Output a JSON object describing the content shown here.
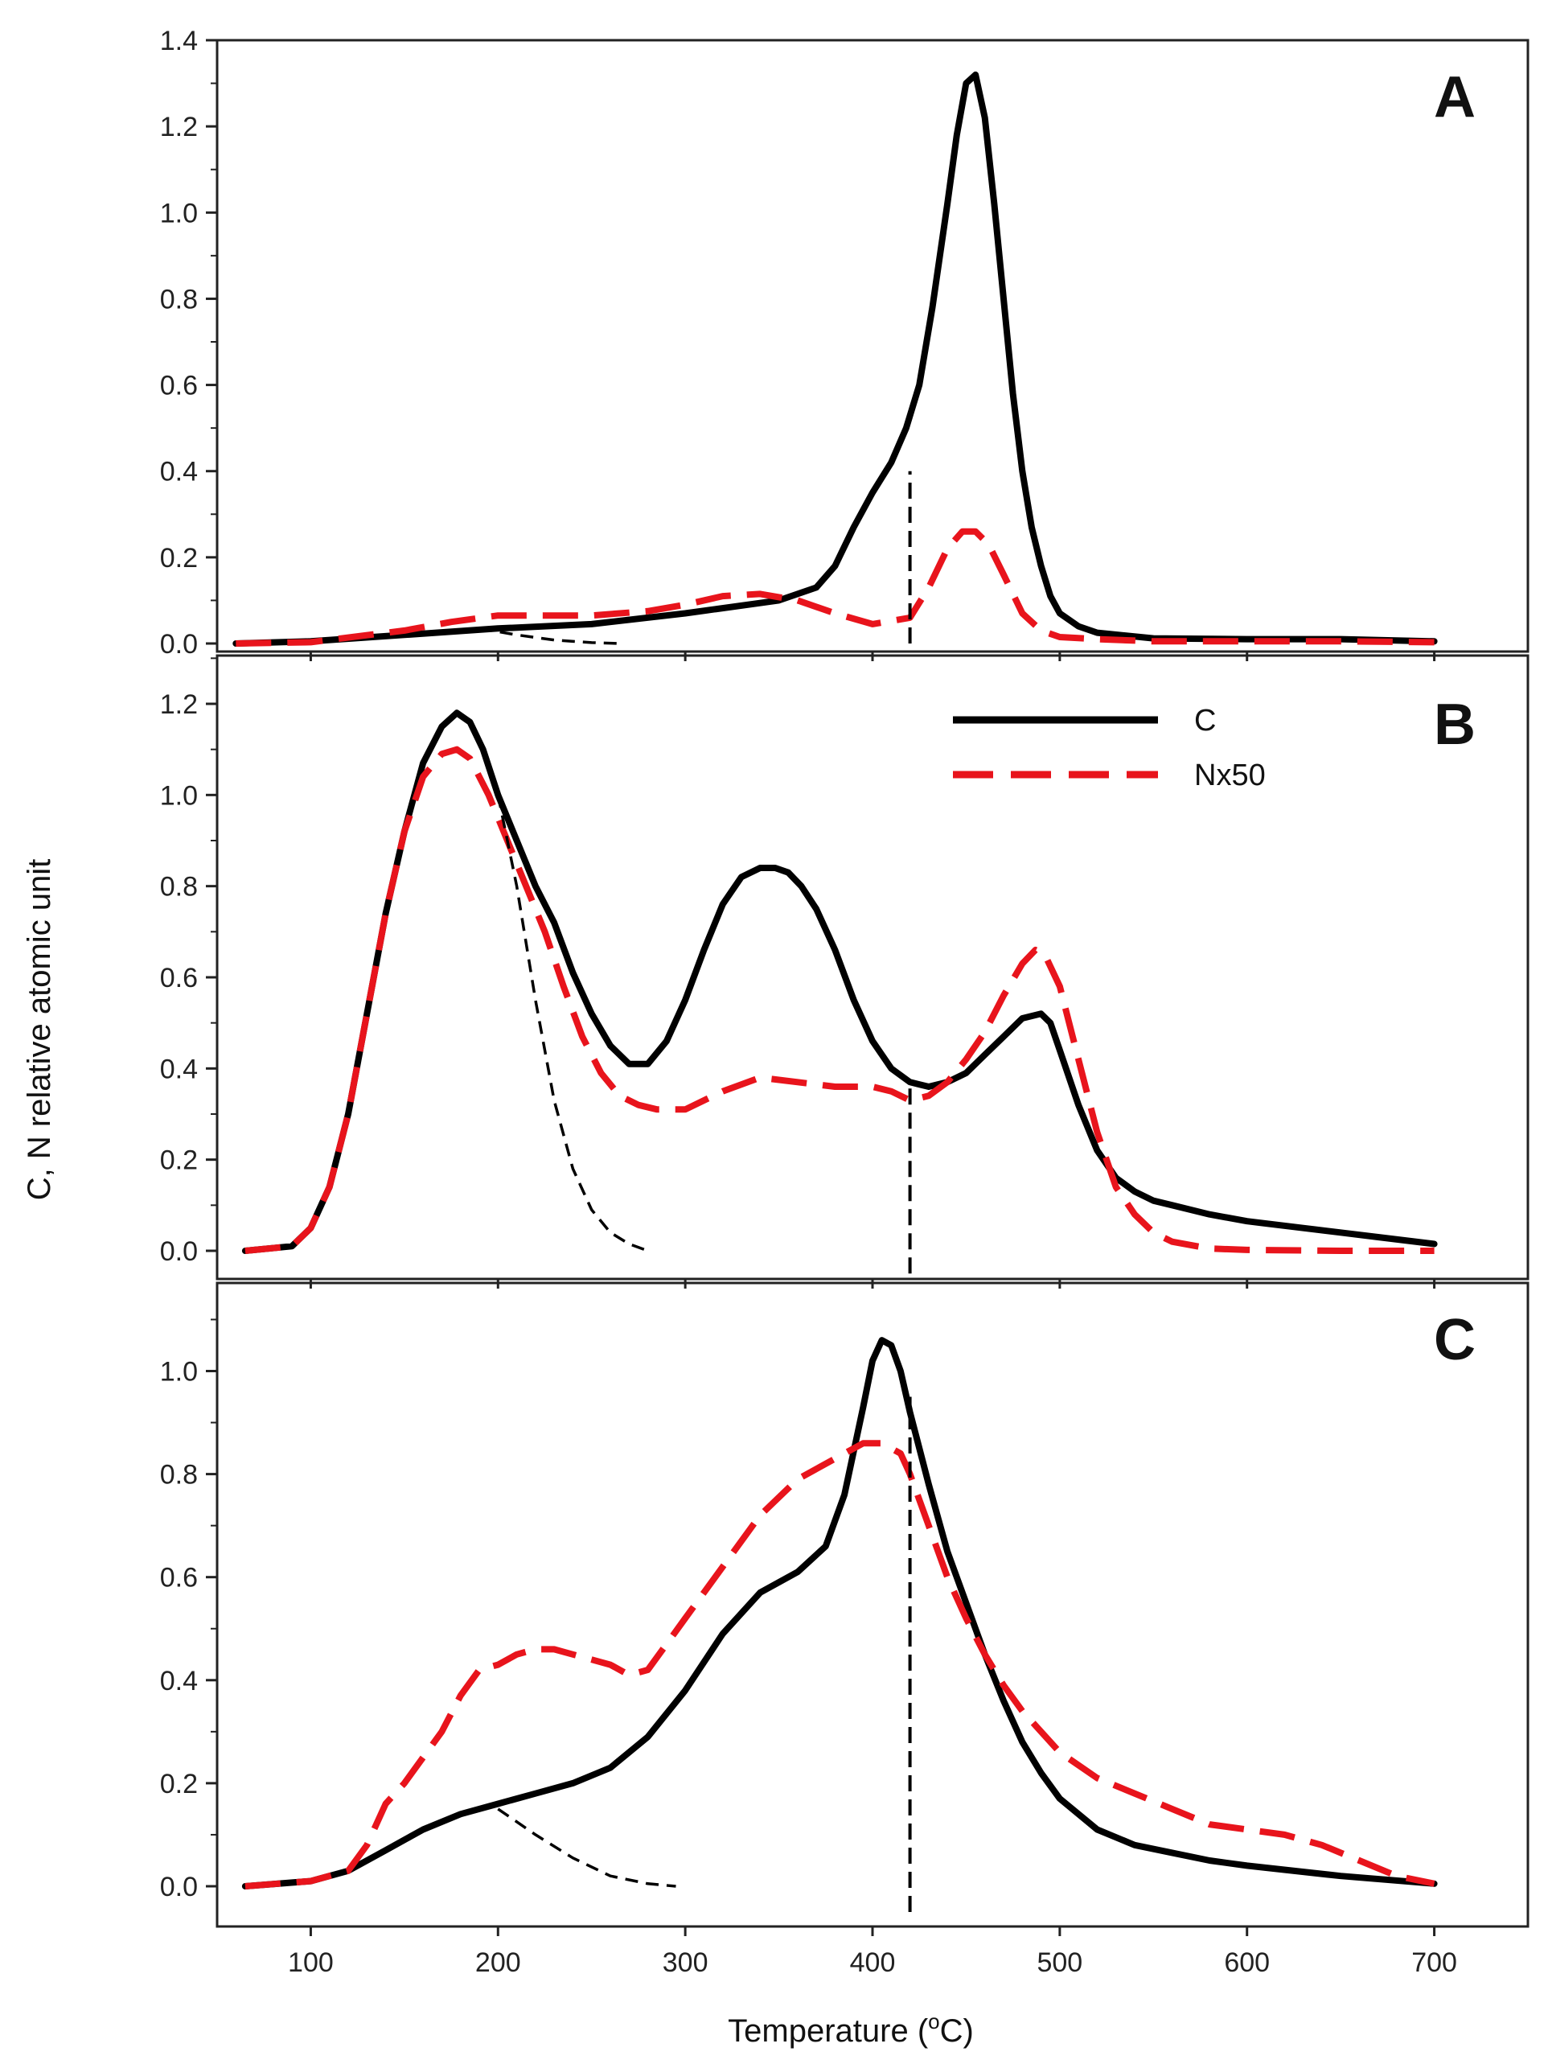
{
  "chart_data": {
    "type": "line",
    "xlabel": "Temperature (",
    "xlabel_sup": "o",
    "xlabel_end": "C)",
    "ylabel": "C, N relative atomic unit",
    "xlim": [
      50,
      750
    ],
    "xticks": [
      100,
      200,
      300,
      400,
      500,
      600,
      700
    ],
    "legend": {
      "position": "top-right of panel B",
      "entries": [
        "C",
        "Nx50"
      ]
    },
    "colors": {
      "C": "#000000",
      "Nx50": "#e8141c",
      "guide": "#000000"
    },
    "panels": [
      {
        "letter": "A",
        "ylim": [
          0,
          1.4
        ],
        "yticks": [
          "0.0",
          "0.2",
          "0.4",
          "0.6",
          "0.8",
          "1.0",
          "1.2",
          "1.4"
        ],
        "series": [
          {
            "name": "C",
            "style": "solid",
            "x": [
              60,
              100,
              150,
              200,
              250,
              300,
              350,
              370,
              380,
              390,
              400,
              410,
              418,
              425,
              432,
              440,
              445,
              450,
              455,
              460,
              465,
              470,
              475,
              480,
              485,
              490,
              495,
              500,
              510,
              520,
              550,
              600,
              650,
              700
            ],
            "y": [
              0,
              0.005,
              0.02,
              0.035,
              0.045,
              0.07,
              0.1,
              0.13,
              0.18,
              0.27,
              0.35,
              0.42,
              0.5,
              0.6,
              0.78,
              1.02,
              1.18,
              1.3,
              1.32,
              1.22,
              1.02,
              0.8,
              0.58,
              0.4,
              0.27,
              0.18,
              0.11,
              0.07,
              0.04,
              0.025,
              0.012,
              0.01,
              0.01,
              0.005
            ]
          },
          {
            "name": "Nx50",
            "style": "dashed",
            "x": [
              60,
              100,
              150,
              175,
              200,
              250,
              280,
              300,
              320,
              340,
              360,
              380,
              400,
              420,
              430,
              440,
              448,
              455,
              462,
              470,
              480,
              490,
              500,
              520,
              550,
              600,
              650,
              700
            ],
            "y": [
              0,
              0.003,
              0.03,
              0.05,
              0.065,
              0.065,
              0.075,
              0.09,
              0.11,
              0.115,
              0.1,
              0.07,
              0.045,
              0.06,
              0.13,
              0.22,
              0.26,
              0.26,
              0.23,
              0.16,
              0.07,
              0.03,
              0.015,
              0.01,
              0.005,
              0.005,
              0.005,
              0.003
            ]
          },
          {
            "name": "fit",
            "style": "dashed-thin",
            "x": [
              190,
              210,
              230,
              250,
              265
            ],
            "y": [
              0.035,
              0.02,
              0.008,
              0.002,
              0
            ]
          },
          {
            "name": "cut",
            "style": "dashed-vertical",
            "x": [
              420,
              420
            ],
            "y": [
              0,
              0.4
            ]
          }
        ]
      },
      {
        "letter": "B",
        "ylim": [
          -0.05,
          1.35
        ],
        "yticks": [
          "0.0",
          "0.2",
          "0.4",
          "0.6",
          "0.8",
          "1.0",
          "1.2"
        ],
        "series": [
          {
            "name": "C",
            "style": "solid",
            "x": [
              65,
              90,
              100,
              110,
              120,
              130,
              140,
              150,
              160,
              170,
              178,
              185,
              192,
              200,
              210,
              220,
              230,
              240,
              250,
              260,
              270,
              280,
              290,
              300,
              310,
              320,
              330,
              340,
              348,
              355,
              362,
              370,
              380,
              390,
              400,
              410,
              420,
              430,
              440,
              450,
              460,
              470,
              480,
              490,
              495,
              500,
              510,
              520,
              530,
              540,
              550,
              560,
              580,
              600,
              630,
              650,
              670,
              700
            ],
            "y": [
              0,
              0.01,
              0.05,
              0.14,
              0.3,
              0.52,
              0.74,
              0.92,
              1.07,
              1.15,
              1.18,
              1.16,
              1.1,
              1.0,
              0.9,
              0.8,
              0.72,
              0.61,
              0.52,
              0.45,
              0.41,
              0.41,
              0.46,
              0.55,
              0.66,
              0.76,
              0.82,
              0.84,
              0.84,
              0.83,
              0.8,
              0.75,
              0.66,
              0.55,
              0.46,
              0.4,
              0.37,
              0.36,
              0.37,
              0.39,
              0.43,
              0.47,
              0.51,
              0.52,
              0.5,
              0.44,
              0.32,
              0.22,
              0.16,
              0.13,
              0.11,
              0.1,
              0.08,
              0.065,
              0.05,
              0.04,
              0.03,
              0.015
            ]
          },
          {
            "name": "Nx50",
            "style": "dashed",
            "x": [
              65,
              90,
              100,
              110,
              120,
              130,
              140,
              150,
              160,
              170,
              178,
              185,
              195,
              205,
              215,
              225,
              235,
              245,
              255,
              265,
              275,
              285,
              300,
              320,
              340,
              360,
              380,
              400,
              410,
              420,
              430,
              440,
              450,
              460,
              470,
              480,
              487,
              492,
              500,
              510,
              520,
              530,
              540,
              550,
              560,
              580,
              600,
              650,
              700
            ],
            "y": [
              0,
              0.01,
              0.05,
              0.14,
              0.3,
              0.52,
              0.74,
              0.92,
              1.04,
              1.09,
              1.1,
              1.08,
              1.0,
              0.9,
              0.8,
              0.7,
              0.58,
              0.47,
              0.39,
              0.34,
              0.32,
              0.31,
              0.31,
              0.35,
              0.38,
              0.37,
              0.36,
              0.36,
              0.35,
              0.33,
              0.34,
              0.37,
              0.42,
              0.48,
              0.56,
              0.63,
              0.66,
              0.65,
              0.58,
              0.42,
              0.26,
              0.14,
              0.08,
              0.04,
              0.02,
              0.005,
              0.002,
              0,
              0
            ]
          },
          {
            "name": "fit",
            "style": "dashed-thin",
            "x": [
              200,
              210,
              220,
              230,
              240,
              250,
              260,
              270,
              280
            ],
            "y": [
              1.0,
              0.8,
              0.55,
              0.33,
              0.18,
              0.09,
              0.04,
              0.015,
              0
            ]
          },
          {
            "name": "cut",
            "style": "dashed-vertical",
            "x": [
              420,
              420
            ],
            "y": [
              -0.05,
              0.36
            ]
          }
        ]
      },
      {
        "letter": "C",
        "ylim": [
          -0.05,
          1.15
        ],
        "yticks": [
          "0.0",
          "0.2",
          "0.4",
          "0.6",
          "0.8",
          "1.0"
        ],
        "series": [
          {
            "name": "C",
            "style": "solid",
            "x": [
              65,
              100,
              120,
              140,
              160,
              180,
              200,
              220,
              240,
              260,
              280,
              300,
              320,
              340,
              360,
              375,
              385,
              395,
              400,
              405,
              410,
              415,
              420,
              430,
              440,
              450,
              460,
              470,
              480,
              490,
              500,
              520,
              540,
              560,
              580,
              600,
              650,
              700
            ],
            "y": [
              0,
              0.01,
              0.03,
              0.07,
              0.11,
              0.14,
              0.16,
              0.18,
              0.2,
              0.23,
              0.29,
              0.38,
              0.49,
              0.57,
              0.61,
              0.66,
              0.76,
              0.93,
              1.02,
              1.06,
              1.05,
              1.0,
              0.92,
              0.78,
              0.65,
              0.55,
              0.45,
              0.36,
              0.28,
              0.22,
              0.17,
              0.11,
              0.08,
              0.065,
              0.05,
              0.04,
              0.02,
              0.005
            ]
          },
          {
            "name": "Nx50",
            "style": "dashed",
            "x": [
              65,
              100,
              120,
              130,
              140,
              150,
              160,
              170,
              180,
              190,
              200,
              210,
              220,
              230,
              240,
              250,
              260,
              270,
              280,
              290,
              300,
              320,
              340,
              360,
              380,
              395,
              405,
              415,
              420,
              430,
              440,
              450,
              460,
              470,
              480,
              490,
              500,
              520,
              540,
              560,
              580,
              600,
              620,
              640,
              660,
              680,
              700
            ],
            "y": [
              0,
              0.01,
              0.03,
              0.08,
              0.16,
              0.2,
              0.25,
              0.3,
              0.37,
              0.42,
              0.43,
              0.45,
              0.46,
              0.46,
              0.45,
              0.44,
              0.43,
              0.41,
              0.42,
              0.47,
              0.52,
              0.62,
              0.72,
              0.79,
              0.83,
              0.86,
              0.86,
              0.84,
              0.8,
              0.7,
              0.6,
              0.52,
              0.45,
              0.39,
              0.34,
              0.3,
              0.26,
              0.21,
              0.18,
              0.15,
              0.12,
              0.11,
              0.1,
              0.08,
              0.05,
              0.02,
              0.005
            ]
          },
          {
            "name": "fit",
            "style": "dashed-thin",
            "x": [
              200,
              220,
              240,
              260,
              280,
              295
            ],
            "y": [
              0.15,
              0.1,
              0.055,
              0.02,
              0.005,
              0
            ]
          },
          {
            "name": "cut",
            "style": "dashed-vertical",
            "x": [
              420,
              420
            ],
            "y": [
              -0.05,
              0.95
            ]
          }
        ]
      }
    ]
  }
}
